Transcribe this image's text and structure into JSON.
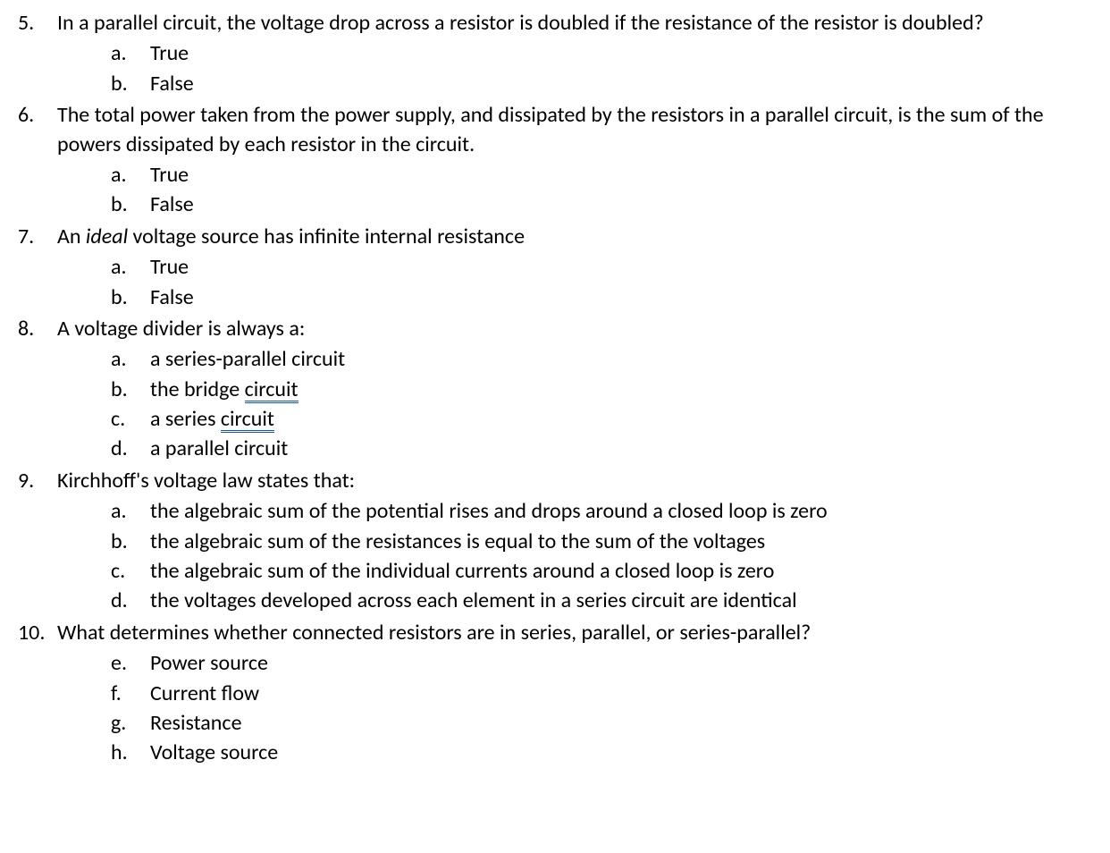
{
  "questions": [
    {
      "number": "5.",
      "text": "In a parallel circuit, the voltage drop across a resistor is doubled if the resistance of the resistor is doubled?",
      "options": [
        {
          "letter": "a.",
          "text": "True"
        },
        {
          "letter": "b.",
          "text": "False"
        }
      ]
    },
    {
      "number": "6.",
      "text": "The total power taken from the power supply, and dissipated by the resistors in a parallel circuit, is the sum of the powers dissipated by each resistor in the circuit.",
      "options": [
        {
          "letter": "a.",
          "text": "True"
        },
        {
          "letter": "b.",
          "text": "False"
        }
      ]
    },
    {
      "number": "7.",
      "text_before_italic": "An ",
      "italic_word": "ideal",
      "text_after_italic": " voltage source has infinite internal resistance",
      "options": [
        {
          "letter": "a.",
          "text": "True"
        },
        {
          "letter": "b.",
          "text": "False"
        }
      ]
    },
    {
      "number": "8.",
      "text": "A voltage divider is always a:",
      "options": [
        {
          "letter": "a.",
          "text": "a series-parallel circuit"
        },
        {
          "letter": "b.",
          "text_before": "the bridge ",
          "underlined": "circuit"
        },
        {
          "letter": "c.",
          "text_before": "a series ",
          "underlined": "circuit"
        },
        {
          "letter": "d.",
          "text": "a parallel circuit"
        }
      ]
    },
    {
      "number": "9.",
      "text": " Kirchhoff's voltage law states that:",
      "options": [
        {
          "letter": "a.",
          "text": "the algebraic sum of the potential rises and drops around a closed loop is zero"
        },
        {
          "letter": "b.",
          "text": "the algebraic sum of the resistances is equal to the sum of the voltages"
        },
        {
          "letter": "c.",
          "text": "the algebraic sum of the individual currents around a closed loop is zero"
        },
        {
          "letter": "d.",
          "text": "the voltages developed across each element in a series circuit are identical"
        }
      ]
    },
    {
      "number": "10.",
      "text": "What determines whether connected resistors are in series, parallel, or series-parallel?",
      "options": [
        {
          "letter": "e.",
          "text": "Power source"
        },
        {
          "letter": "f.",
          "text": "Current flow"
        },
        {
          "letter": "g.",
          "text": "Resistance"
        },
        {
          "letter": "h.",
          "text": "Voltage source"
        }
      ]
    }
  ]
}
